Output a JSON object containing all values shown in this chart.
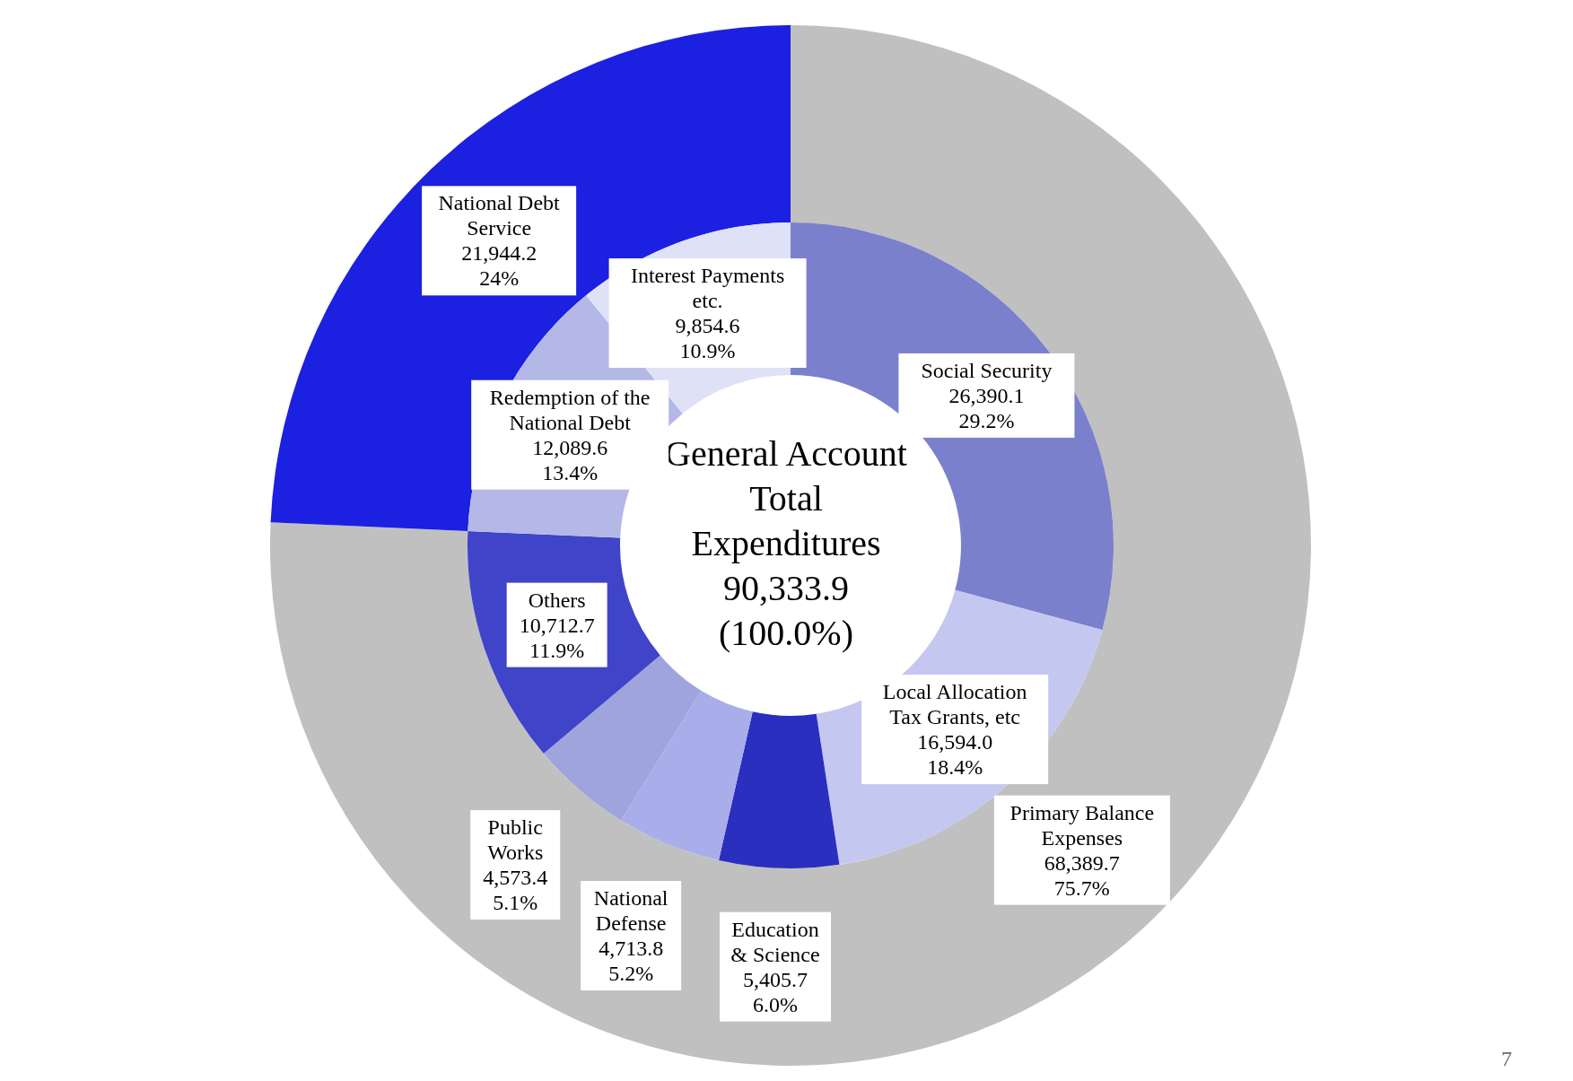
{
  "chart_data": [
    {
      "type": "donut",
      "categories": [
        "Primary Balance Expenses",
        "National Debt Service"
      ],
      "values": [
        68389.7,
        21944.2
      ],
      "colors": [
        "#c0c0c0",
        "#1c20e0"
      ],
      "value_labels": [
        "68,389.7\n75.7%",
        "21,944.2\n24%"
      ],
      "annotations": [
        "7"
      ]
    },
    {
      "type": "donut",
      "title": "General Account Total Expenditures",
      "subtitle": "90,333.9\n(100.0%)",
      "categories": [
        "Social Security",
        "Local Allocation Tax Grants, etc",
        "Education & Science",
        "National Defense",
        "Public Works",
        "Others",
        "Redemption of the National Debt",
        "Interest Payments etc."
      ],
      "values": [
        26390.1,
        16594.0,
        5405.7,
        4713.8,
        4573.4,
        10712.7,
        12089.6,
        9854.6
      ],
      "colors": [
        "#7b80cc",
        "#c4c7f0",
        "#2a2fc0",
        "#a9adea",
        "#9fa4dc",
        "#3f44c8",
        "#b4b8e6",
        "#dfe1f7"
      ],
      "value_labels": [
        "26,390.1\n29.2%",
        "16,594.0\n18.4%",
        "5,405.7\n6.0%",
        "4,713.8\n5.2%",
        "4,573.4\n5.1%",
        "10,712.7\n11.9%",
        "12,089.6\n13.4%",
        "9,854.6\n10.9%"
      ]
    }
  ]
}
